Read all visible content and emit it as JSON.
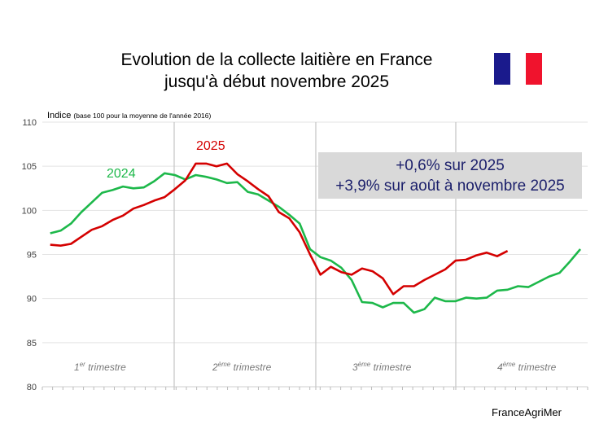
{
  "title_line1": "Evolution de la collecte laitière en France",
  "title_line2": "jusqu'à début novembre 2025",
  "source": "FranceAgriMer",
  "flag_colors": [
    "#1a1a8c",
    "#ffffff",
    "#f0132d"
  ],
  "annotation": {
    "line1": "+0,6% sur 2025",
    "line2": "+3,9% sur août à novembre 2025"
  },
  "quarters": [
    {
      "num": "1",
      "sup": "er",
      "label": " trimestre"
    },
    {
      "num": "2",
      "sup": "ème",
      "label": " trimestre"
    },
    {
      "num": "3",
      "sup": "ème",
      "label": " trimestre"
    },
    {
      "num": "4",
      "sup": "ème",
      "label": " trimestre"
    }
  ],
  "chart_data": {
    "type": "line",
    "ylabel": "Indice",
    "ylabel_note": "(base 100 pour la moyenne de l'année 2016)",
    "ylim": [
      80,
      110
    ],
    "yticks": [
      "80",
      "85",
      "90",
      "95",
      "100",
      "105",
      "110"
    ],
    "x": "weeks 1-52",
    "grid": true,
    "series": [
      {
        "name": "2024",
        "color": "#1db84a",
        "values": [
          97.4,
          97.7,
          98.5,
          99.8,
          100.9,
          102.0,
          102.3,
          102.7,
          102.5,
          102.6,
          103.3,
          104.2,
          104.0,
          103.5,
          104.0,
          103.8,
          103.5,
          103.1,
          103.2,
          102.1,
          101.8,
          101.1,
          100.4,
          99.5,
          98.5,
          95.6,
          94.7,
          94.3,
          93.5,
          92.1,
          89.6,
          89.5,
          89.0,
          89.5,
          89.5,
          88.4,
          88.8,
          90.1,
          89.7,
          89.7,
          90.1,
          90.0,
          90.1,
          90.9,
          91.0,
          91.4,
          91.3,
          91.9,
          92.5,
          92.9,
          94.2,
          95.6
        ]
      },
      {
        "name": "2025",
        "color": "#d40000",
        "values": [
          96.1,
          96.0,
          96.2,
          97.0,
          97.8,
          98.2,
          98.9,
          99.4,
          100.2,
          100.6,
          101.1,
          101.5,
          102.4,
          103.4,
          105.3,
          105.3,
          105.0,
          105.3,
          104.1,
          103.3,
          102.4,
          101.6,
          99.8,
          99.1,
          97.5,
          95.0,
          92.7,
          93.6,
          93.0,
          92.7,
          93.4,
          93.1,
          92.3,
          90.5,
          91.4,
          91.4,
          92.1,
          92.7,
          93.3,
          94.3,
          94.4,
          94.9,
          95.2,
          94.8,
          95.4
        ]
      }
    ]
  }
}
